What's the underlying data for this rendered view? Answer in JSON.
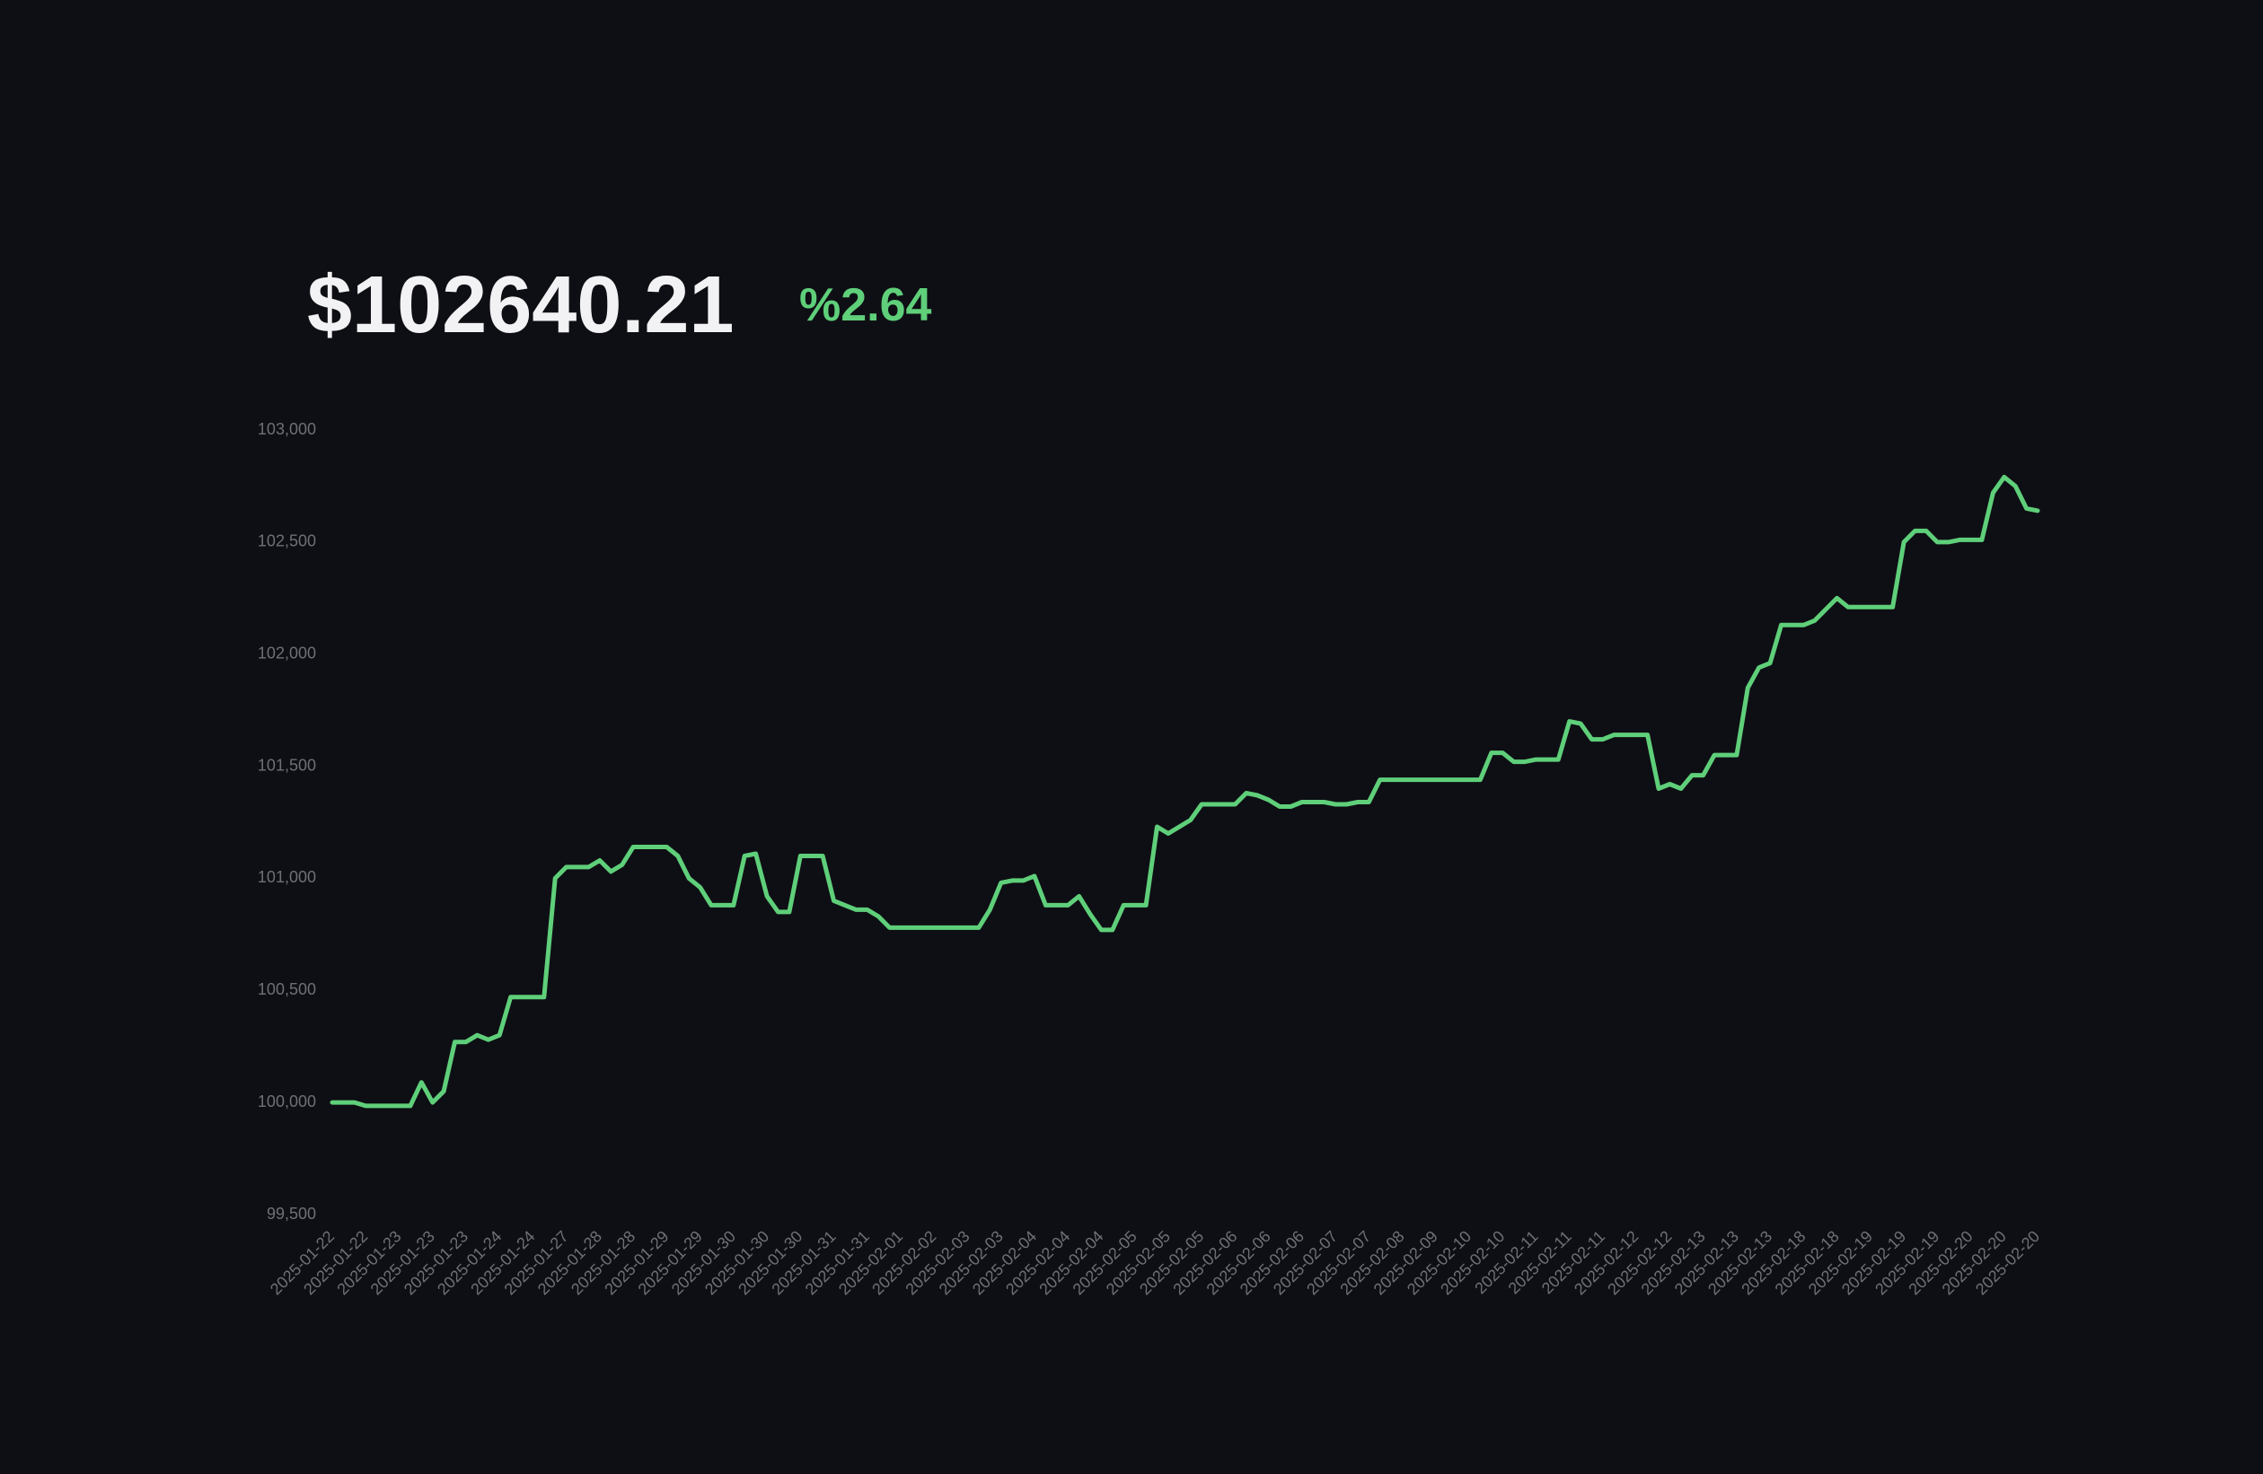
{
  "header": {
    "balance": "$102640.21",
    "change": "%2.64"
  },
  "chart_data": {
    "type": "line",
    "color": "#5fcf7a",
    "grid": false,
    "ylim": [
      99500,
      103000
    ],
    "yticks": [
      {
        "value": 99500,
        "label": "99,500"
      },
      {
        "value": 100000,
        "label": "100,000"
      },
      {
        "value": 100500,
        "label": "100,500"
      },
      {
        "value": 101000,
        "label": "101,000"
      },
      {
        "value": 101500,
        "label": "101,500"
      },
      {
        "value": 102000,
        "label": "102,000"
      },
      {
        "value": 102500,
        "label": "102,500"
      },
      {
        "value": 103000,
        "label": "103,000"
      }
    ],
    "categories": [
      "2025-01-22",
      null,
      null,
      "2025-01-22",
      null,
      null,
      "2025-01-23",
      null,
      null,
      "2025-01-23",
      null,
      null,
      "2025-01-23",
      null,
      null,
      "2025-01-24",
      null,
      null,
      "2025-01-24",
      null,
      null,
      "2025-01-27",
      null,
      null,
      "2025-01-28",
      null,
      null,
      "2025-01-28",
      null,
      null,
      "2025-01-29",
      null,
      null,
      "2025-01-29",
      null,
      null,
      "2025-01-30",
      null,
      null,
      "2025-01-30",
      null,
      null,
      "2025-01-30",
      null,
      null,
      "2025-01-31",
      null,
      null,
      "2025-01-31",
      null,
      null,
      "2025-02-01",
      null,
      null,
      "2025-02-02",
      null,
      null,
      "2025-02-03",
      null,
      null,
      "2025-02-03",
      null,
      null,
      "2025-02-04",
      null,
      null,
      "2025-02-04",
      null,
      null,
      "2025-02-04",
      null,
      null,
      "2025-02-05",
      null,
      null,
      "2025-02-05",
      null,
      null,
      "2025-02-05",
      null,
      null,
      "2025-02-06",
      null,
      null,
      "2025-02-06",
      null,
      null,
      "2025-02-06",
      null,
      null,
      "2025-02-07",
      null,
      null,
      "2025-02-07",
      null,
      null,
      "2025-02-08",
      null,
      null,
      "2025-02-09",
      null,
      null,
      "2025-02-10",
      null,
      null,
      "2025-02-10",
      null,
      null,
      "2025-02-11",
      null,
      null,
      "2025-02-11",
      null,
      null,
      "2025-02-11",
      null,
      null,
      "2025-02-12",
      null,
      null,
      "2025-02-12",
      null,
      null,
      "2025-02-13",
      null,
      null,
      "2025-02-13",
      null,
      null,
      "2025-02-13",
      null,
      null,
      "2025-02-18",
      null,
      null,
      "2025-02-18",
      null,
      null,
      "2025-02-19",
      null,
      null,
      "2025-02-19",
      null,
      null,
      "2025-02-19",
      null,
      null,
      "2025-02-20",
      null,
      null,
      "2025-02-20",
      null,
      null,
      "2025-02-20"
    ],
    "values": [
      100000,
      100000,
      100000,
      99985,
      99985,
      99985,
      99985,
      99985,
      100090,
      100000,
      100050,
      100270,
      100270,
      100300,
      100280,
      100300,
      100470,
      100470,
      100470,
      100470,
      101000,
      101050,
      101050,
      101050,
      101080,
      101030,
      101060,
      101140,
      101140,
      101140,
      101140,
      101100,
      101000,
      100960,
      100880,
      100880,
      100880,
      101100,
      101110,
      100920,
      100850,
      100850,
      101100,
      101100,
      101100,
      100900,
      100880,
      100860,
      100860,
      100830,
      100780,
      100780,
      100780,
      100780,
      100780,
      100780,
      100780,
      100780,
      100780,
      100860,
      100980,
      100990,
      100990,
      101010,
      100880,
      100880,
      100880,
      100920,
      100840,
      100770,
      100770,
      100880,
      100880,
      100880,
      101230,
      101200,
      101230,
      101260,
      101330,
      101330,
      101330,
      101330,
      101380,
      101370,
      101350,
      101320,
      101320,
      101340,
      101340,
      101340,
      101330,
      101330,
      101340,
      101340,
      101440,
      101440,
      101440,
      101440,
      101440,
      101440,
      101440,
      101440,
      101440,
      101440,
      101560,
      101560,
      101520,
      101520,
      101530,
      101530,
      101530,
      101700,
      101690,
      101620,
      101620,
      101640,
      101640,
      101640,
      101640,
      101400,
      101420,
      101400,
      101460,
      101460,
      101550,
      101550,
      101550,
      101850,
      101940,
      101960,
      102130,
      102130,
      102130,
      102150,
      102200,
      102250,
      102210,
      102210,
      102210,
      102210,
      102210,
      102500,
      102550,
      102550,
      102500,
      102500,
      102510,
      102510,
      102510,
      102720,
      102790,
      102750,
      102650,
      102640
    ]
  }
}
